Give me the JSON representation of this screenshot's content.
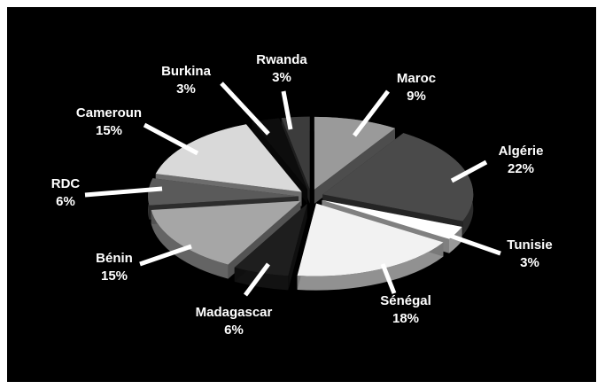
{
  "chart_data": {
    "type": "pie",
    "style": "3d-exploded",
    "background": "#000000",
    "label_color": "#ffffff",
    "leader_line_color": "#ffffff",
    "slices": [
      {
        "label": "Maroc",
        "value": 9,
        "value_label": "9%",
        "color": "#9a9a9a"
      },
      {
        "label": "Algérie",
        "value": 22,
        "value_label": "22%",
        "color": "#4a4a4a"
      },
      {
        "label": "Tunisie",
        "value": 3,
        "value_label": "3%",
        "color": "#ffffff"
      },
      {
        "label": "Sénégal",
        "value": 18,
        "value_label": "18%",
        "color": "#f2f2f2"
      },
      {
        "label": "Madagascar",
        "value": 6,
        "value_label": "6%",
        "color": "#1e1e1e"
      },
      {
        "label": "Bénin",
        "value": 15,
        "value_label": "15%",
        "color": "#a6a6a6"
      },
      {
        "label": "RDC",
        "value": 6,
        "value_label": "6%",
        "color": "#5a5a5a"
      },
      {
        "label": "Cameroun",
        "value": 15,
        "value_label": "15%",
        "color": "#d9d9d9"
      },
      {
        "label": "Burkina",
        "value": 3,
        "value_label": "3%",
        "color": "#0d0d0d"
      },
      {
        "label": "Rwanda",
        "value": 3,
        "value_label": "3%",
        "color": "#3c3c3c"
      }
    ]
  }
}
